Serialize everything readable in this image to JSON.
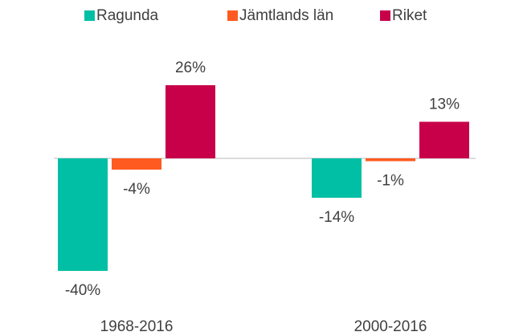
{
  "chart_data": {
    "type": "bar",
    "categories": [
      "1968-2016",
      "2000-2016"
    ],
    "series": [
      {
        "name": "Ragunda",
        "color": "#00bfa5",
        "values": [
          -40,
          -14
        ],
        "value_labels": [
          "-40%",
          "-14%"
        ]
      },
      {
        "name": "Jämtlands län",
        "color": "#ff5a1f",
        "values": [
          -4,
          -1
        ],
        "value_labels": [
          "-4%",
          "-1%"
        ]
      },
      {
        "name": "Riket",
        "color": "#c8004a",
        "values": [
          26,
          13
        ],
        "value_labels": [
          "26%",
          "13%"
        ]
      }
    ],
    "legend": "top"
  }
}
